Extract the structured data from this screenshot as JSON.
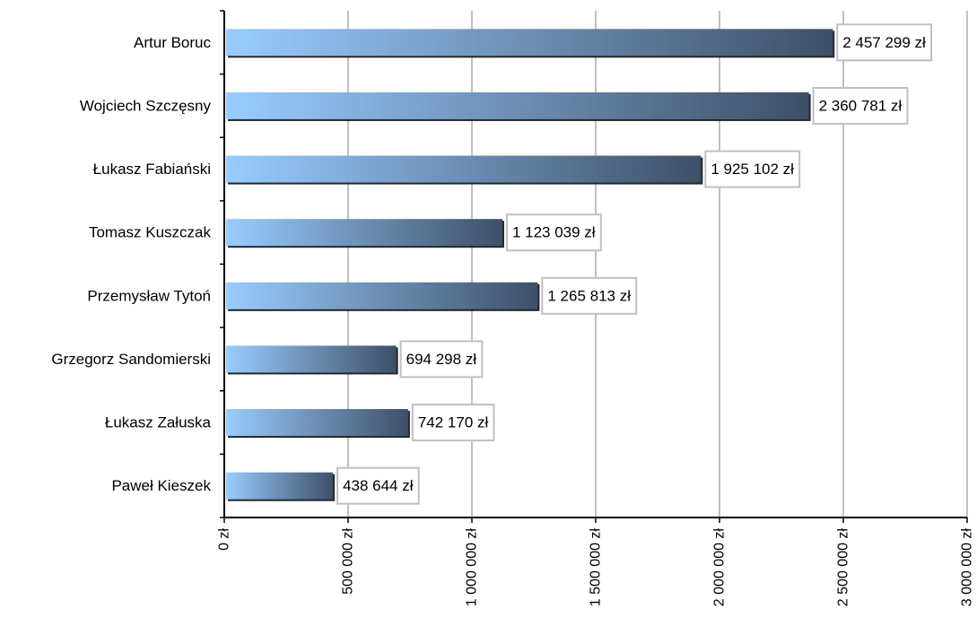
{
  "chart_data": {
    "type": "bar",
    "orientation": "horizontal",
    "categories": [
      "Artur Boruc",
      "Wojciech Szczęsny",
      "Łukasz Fabiański",
      "Tomasz Kuszczak",
      "Przemysław Tytoń",
      "Grzegorz Sandomierski",
      "Łukasz Załuska",
      "Paweł Kieszek"
    ],
    "values": [
      2457299,
      2360781,
      1925102,
      1123039,
      1265813,
      694298,
      742170,
      438644
    ],
    "data_labels": [
      "2 457 299 zł",
      "2 360 781 zł",
      "1 925 102 zł",
      "1 123 039 zł",
      "1 265 813 zł",
      "694 298 zł",
      "742 170 zł",
      "438 644 zł"
    ],
    "x_ticks": [
      0,
      500000,
      1000000,
      1500000,
      2000000,
      2500000,
      3000000
    ],
    "x_tick_labels": [
      "0 zł",
      "500 000 zł",
      "1 000 000 zł",
      "1 500 000 zł",
      "2 000 000 zł",
      "2 500 000 zł",
      "3 000 000 zł"
    ],
    "xlim": [
      0,
      3000000
    ],
    "title": "",
    "xlabel": "",
    "ylabel": "",
    "grid": "vertical",
    "legend": "none",
    "colors": {
      "bar_start": "#99ccff",
      "bar_end": "#3e5068",
      "grid": "#808080",
      "axis": "#000000",
      "label_border": "#c0c0c0"
    }
  }
}
